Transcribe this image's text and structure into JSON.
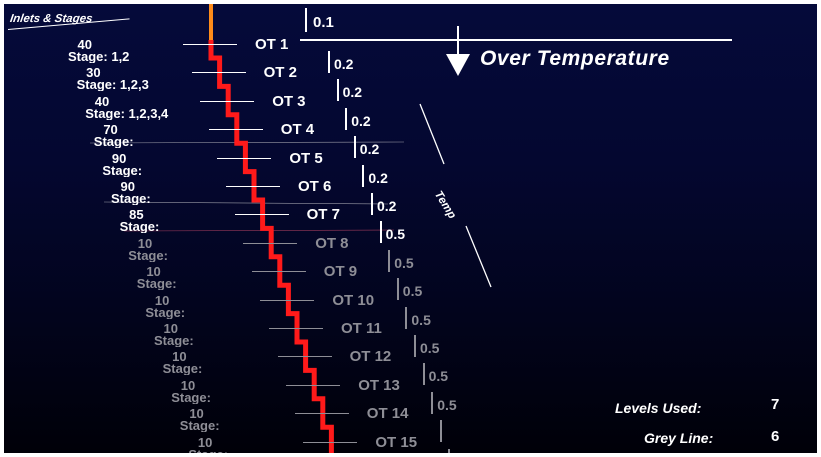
{
  "header": {
    "title": "Inlets & Stages"
  },
  "gauge": {
    "title": "Over Temperature",
    "side_label": "Temp",
    "top_value": "0.1"
  },
  "colors": {
    "step_line": "#ff1a1a",
    "top_line": "#ff8c1a",
    "active_text": "#ffffff",
    "grey_text": "#8e8e96"
  },
  "status": {
    "levels_used_label": "Levels Used:",
    "levels_used_value": "7",
    "grey_line_label": "Grey Line:",
    "grey_line_value": "6"
  },
  "levels": [
    {
      "num": "40",
      "stage": "Stage: 1,2",
      "ot": "OT 1",
      "value": "0.2",
      "active": true
    },
    {
      "num": "30",
      "stage": "Stage: 1,2,3",
      "ot": "OT 2",
      "value": "0.2",
      "active": true
    },
    {
      "num": "40",
      "stage": "Stage: 1,2,3,4",
      "ot": "OT 3",
      "value": "0.2",
      "active": true
    },
    {
      "num": "70",
      "stage": "Stage:",
      "ot": "OT 4",
      "value": "0.2",
      "active": true
    },
    {
      "num": "90",
      "stage": "Stage:",
      "ot": "OT 5",
      "value": "0.2",
      "active": true
    },
    {
      "num": "90",
      "stage": "Stage:",
      "ot": "OT 6",
      "value": "0.2",
      "active": true
    },
    {
      "num": "85",
      "stage": "Stage:",
      "ot": "OT 7",
      "value": "0.5",
      "active": true
    },
    {
      "num": "10",
      "stage": "Stage:",
      "ot": "OT 8",
      "value": "0.5",
      "active": false
    },
    {
      "num": "10",
      "stage": "Stage:",
      "ot": "OT 9",
      "value": "0.5",
      "active": false
    },
    {
      "num": "10",
      "stage": "Stage:",
      "ot": "OT 10",
      "value": "0.5",
      "active": false
    },
    {
      "num": "10",
      "stage": "Stage:",
      "ot": "OT 11",
      "value": "0.5",
      "active": false
    },
    {
      "num": "10",
      "stage": "Stage:",
      "ot": "OT 12",
      "value": "0.5",
      "active": false
    },
    {
      "num": "10",
      "stage": "Stage:",
      "ot": "OT 13",
      "value": "0.5",
      "active": false
    },
    {
      "num": "10",
      "stage": "Stage:",
      "ot": "OT 14",
      "value": "",
      "active": false
    },
    {
      "num": "10",
      "stage": "Stage:",
      "ot": "OT 15",
      "value": "",
      "active": false
    }
  ]
}
